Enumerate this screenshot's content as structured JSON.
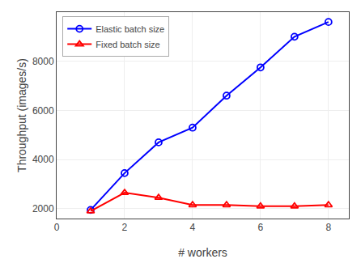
{
  "chart_data": {
    "type": "line",
    "x": [
      1,
      2,
      3,
      4,
      5,
      6,
      7,
      8
    ],
    "series": [
      {
        "name": "Elastic batch size",
        "color": "#0000ff",
        "marker": "circle",
        "values": [
          1950,
          3450,
          4700,
          5300,
          6600,
          7750,
          9000,
          9600
        ]
      },
      {
        "name": "Fixed batch size",
        "color": "#ff0000",
        "marker": "triangle",
        "values": [
          1900,
          2650,
          2450,
          2150,
          2150,
          2100,
          2100,
          2150
        ]
      }
    ],
    "xlabel": "# workers",
    "ylabel": "Throughput (images/s)",
    "xlim": [
      0,
      8.6
    ],
    "ylim": [
      1600,
      10000
    ],
    "xticks": [
      0,
      2,
      4,
      6,
      8
    ],
    "yticks": [
      2000,
      4000,
      6000,
      8000
    ],
    "grid": true,
    "legend": "upper left"
  }
}
